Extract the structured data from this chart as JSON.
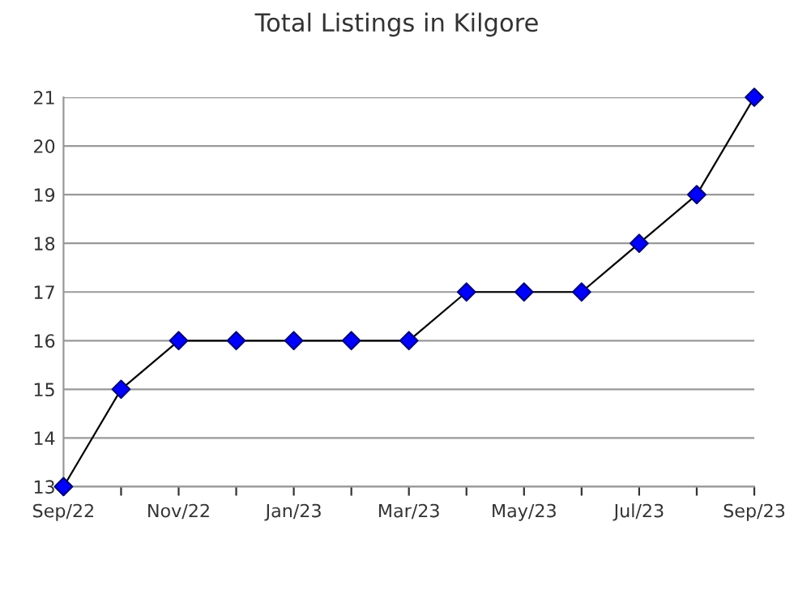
{
  "chart_data": {
    "type": "line",
    "title": "Total Listings in Kilgore",
    "categories": [
      "Sep/22",
      null,
      "Nov/22",
      null,
      "Jan/23",
      null,
      "Mar/23",
      null,
      "May/23",
      null,
      "Jul/23",
      null,
      "Sep/23"
    ],
    "series": [
      {
        "color": "#0000ff",
        "values": [
          13,
          15,
          16,
          16,
          16,
          16,
          16,
          17,
          17,
          17,
          18,
          19,
          21
        ]
      }
    ],
    "ylim": [
      13,
      21
    ],
    "yticks": [
      13,
      14,
      15,
      16,
      17,
      18,
      19,
      20,
      21
    ],
    "grid": "y",
    "marker": "diamond",
    "line_style": "solid"
  }
}
